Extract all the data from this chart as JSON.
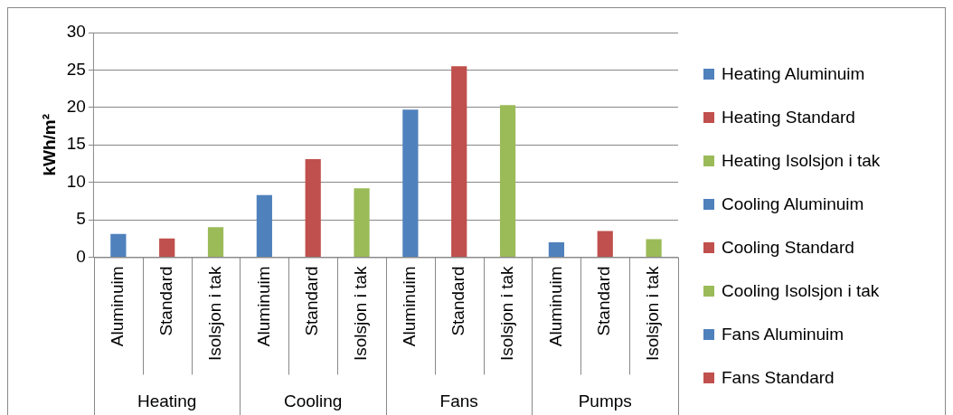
{
  "chart_data": {
    "type": "bar",
    "ylabel": "kWh/m²",
    "categories": [
      "Aluminuim",
      "Standard",
      "Isolsjon i tak",
      "Aluminuim",
      "Standard",
      "Isolsjon i tak",
      "Aluminuim",
      "Standard",
      "Isolsjon i tak",
      "Aluminuim",
      "Standard",
      "Isolsjon i tak"
    ],
    "annotations": [
      "Heating",
      "Cooling",
      "Fans",
      "Pumps"
    ],
    "series": [
      {
        "name": "Heating Aluminuim",
        "color": "#4f81bd",
        "values": [
          3.1,
          null,
          null,
          null,
          null,
          null,
          null,
          null,
          null,
          null,
          null,
          null
        ]
      },
      {
        "name": "Heating Standard",
        "color": "#c0504d",
        "values": [
          null,
          2.5,
          null,
          null,
          null,
          null,
          null,
          null,
          null,
          null,
          null,
          null
        ]
      },
      {
        "name": "Heating Isolsjon i tak",
        "color": "#9bbb59",
        "values": [
          null,
          null,
          4.0,
          null,
          null,
          null,
          null,
          null,
          null,
          null,
          null,
          null
        ]
      },
      {
        "name": "Cooling Aluminuim",
        "color": "#4f81bd",
        "values": [
          null,
          null,
          null,
          8.3,
          null,
          null,
          null,
          null,
          null,
          null,
          null,
          null
        ]
      },
      {
        "name": "Cooling Standard",
        "color": "#c0504d",
        "values": [
          null,
          null,
          null,
          null,
          13.1,
          null,
          null,
          null,
          null,
          null,
          null,
          null
        ]
      },
      {
        "name": "Cooling Isolsjon i tak",
        "color": "#9bbb59",
        "values": [
          null,
          null,
          null,
          null,
          null,
          9.2,
          null,
          null,
          null,
          null,
          null,
          null
        ]
      },
      {
        "name": "Fans Aluminuim",
        "color": "#4f81bd",
        "values": [
          null,
          null,
          null,
          null,
          null,
          null,
          19.7,
          null,
          null,
          null,
          null,
          null
        ]
      },
      {
        "name": "Fans Standard",
        "color": "#c0504d",
        "values": [
          null,
          null,
          null,
          null,
          null,
          null,
          null,
          25.5,
          null,
          null,
          null,
          null
        ]
      },
      {
        "color": "#9bbb59",
        "values": [
          null,
          null,
          null,
          null,
          null,
          null,
          null,
          null,
          20.3,
          null,
          null,
          null
        ]
      },
      {
        "color": "#4f81bd",
        "values": [
          null,
          null,
          null,
          null,
          null,
          null,
          null,
          null,
          null,
          2.0,
          null,
          null
        ]
      },
      {
        "color": "#c0504d",
        "values": [
          null,
          null,
          null,
          null,
          null,
          null,
          null,
          null,
          null,
          null,
          3.5,
          null
        ]
      },
      {
        "color": "#9bbb59",
        "values": [
          null,
          null,
          null,
          null,
          null,
          null,
          null,
          null,
          null,
          null,
          null,
          2.4
        ]
      }
    ],
    "ylim": [
      0,
      30
    ],
    "yticks": [
      0,
      5,
      10,
      15,
      20,
      25,
      30
    ],
    "grid": "y",
    "legend": "right"
  }
}
